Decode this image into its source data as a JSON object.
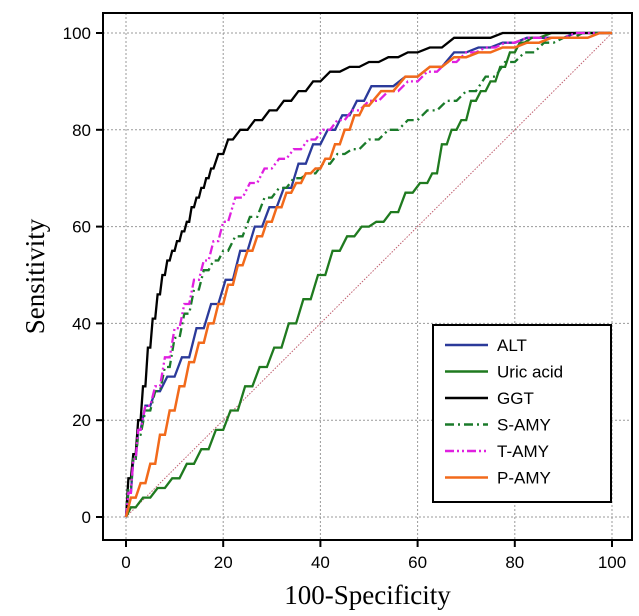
{
  "chart_data": {
    "type": "line",
    "title": "",
    "xlabel": "100-Specificity",
    "ylabel": "Sensitivity",
    "xlim": [
      0,
      100
    ],
    "ylim": [
      0,
      100
    ],
    "xticks": [
      0,
      20,
      40,
      60,
      80,
      100
    ],
    "yticks": [
      0,
      20,
      40,
      60,
      80,
      100
    ],
    "grid": true,
    "legend_position": "bottom-right",
    "reference_line": {
      "x": [
        0,
        100
      ],
      "y": [
        0,
        100
      ],
      "color": "#c06070",
      "style": "dotted"
    },
    "series": [
      {
        "name": "ALT",
        "color": "#2b3a9a",
        "dash": "solid",
        "x": [
          0,
          1,
          2,
          3,
          5,
          7,
          10,
          13,
          16,
          19,
          22,
          25,
          28,
          31,
          34,
          37,
          40,
          43,
          46,
          49,
          52,
          55,
          60,
          65,
          70,
          75,
          80,
          85,
          90,
          95,
          100
        ],
        "y": [
          0,
          5,
          12,
          18,
          23,
          26,
          29,
          33,
          39,
          44,
          49,
          55,
          60,
          64,
          68,
          73,
          77,
          80,
          83,
          86,
          89,
          89,
          91,
          93,
          96,
          97,
          98,
          99,
          99,
          100,
          100
        ]
      },
      {
        "name": "Uric acid",
        "color": "#1f7a1f",
        "dash": "solid",
        "x": [
          0,
          2,
          5,
          8,
          11,
          14,
          17,
          20,
          23,
          26,
          29,
          32,
          35,
          38,
          41,
          44,
          47,
          50,
          53,
          56,
          59,
          62,
          64,
          66,
          68,
          70,
          72,
          74,
          76,
          78,
          80,
          82,
          85,
          90,
          95,
          100
        ],
        "y": [
          0,
          2,
          4,
          6,
          8,
          11,
          14,
          18,
          22,
          27,
          31,
          35,
          40,
          45,
          50,
          55,
          58,
          60,
          61,
          63,
          67,
          69,
          71,
          77,
          80,
          82,
          86,
          88,
          90,
          93,
          96,
          98,
          99,
          100,
          100,
          100
        ]
      },
      {
        "name": "GGT",
        "color": "#000000",
        "dash": "solid",
        "x": [
          0,
          1,
          2,
          3,
          4,
          5,
          6,
          7,
          8,
          9,
          10,
          11,
          12,
          13,
          14,
          15,
          16,
          17,
          18,
          20,
          22,
          25,
          28,
          31,
          34,
          37,
          40,
          44,
          48,
          52,
          56,
          60,
          65,
          70,
          75,
          80,
          90,
          100
        ],
        "y": [
          0,
          8,
          13,
          20,
          27,
          35,
          41,
          46,
          50,
          53,
          55,
          57,
          59,
          61,
          64,
          66,
          68,
          70,
          72,
          75,
          78,
          80,
          82,
          84,
          86,
          88,
          90,
          92,
          93,
          94,
          95,
          96,
          97,
          99,
          99,
          100,
          100,
          100
        ]
      },
      {
        "name": "S-AMY",
        "color": "#1a7a2a",
        "dash": "dashdot",
        "x": [
          0,
          1,
          2,
          3,
          5,
          7,
          9,
          11,
          13,
          15,
          17,
          19,
          21,
          24,
          27,
          30,
          33,
          36,
          39,
          42,
          45,
          48,
          52,
          56,
          60,
          64,
          68,
          72,
          76,
          80,
          84,
          88,
          92,
          96,
          100
        ],
        "y": [
          0,
          6,
          12,
          17,
          22,
          26,
          31,
          37,
          42,
          47,
          51,
          53,
          55,
          58,
          62,
          66,
          68,
          70,
          71,
          73,
          75,
          76,
          78,
          80,
          82,
          84,
          86,
          88,
          91,
          94,
          96,
          98,
          99,
          100,
          100
        ]
      },
      {
        "name": "T-AMY",
        "color": "#e020e0",
        "dash": "dashdotdot",
        "x": [
          0,
          1,
          2,
          3,
          5,
          7,
          9,
          11,
          13,
          15,
          17,
          19,
          21,
          24,
          27,
          30,
          33,
          36,
          39,
          42,
          45,
          48,
          52,
          56,
          60,
          64,
          68,
          72,
          76,
          80,
          85,
          90,
          95,
          100
        ],
        "y": [
          0,
          5,
          12,
          18,
          23,
          27,
          33,
          39,
          44,
          49,
          53,
          57,
          61,
          66,
          69,
          72,
          74,
          76,
          78,
          80,
          82,
          84,
          86,
          88,
          90,
          92,
          94,
          96,
          97,
          98,
          99,
          99,
          100,
          100
        ]
      },
      {
        "name": "P-AMY",
        "color": "#f26a1b",
        "dash": "solid",
        "x": [
          0,
          2,
          4,
          6,
          8,
          10,
          12,
          14,
          16,
          18,
          20,
          22,
          24,
          26,
          28,
          30,
          32,
          34,
          36,
          38,
          40,
          42,
          44,
          46,
          48,
          50,
          55,
          60,
          65,
          70,
          75,
          80,
          85,
          90,
          95,
          100
        ],
        "y": [
          0,
          4,
          7,
          11,
          17,
          22,
          27,
          32,
          36,
          40,
          44,
          48,
          52,
          55,
          58,
          61,
          64,
          67,
          69,
          71,
          72,
          74,
          77,
          80,
          83,
          85,
          88,
          91,
          93,
          95,
          96,
          97,
          98,
          99,
          99,
          100
        ]
      }
    ]
  }
}
